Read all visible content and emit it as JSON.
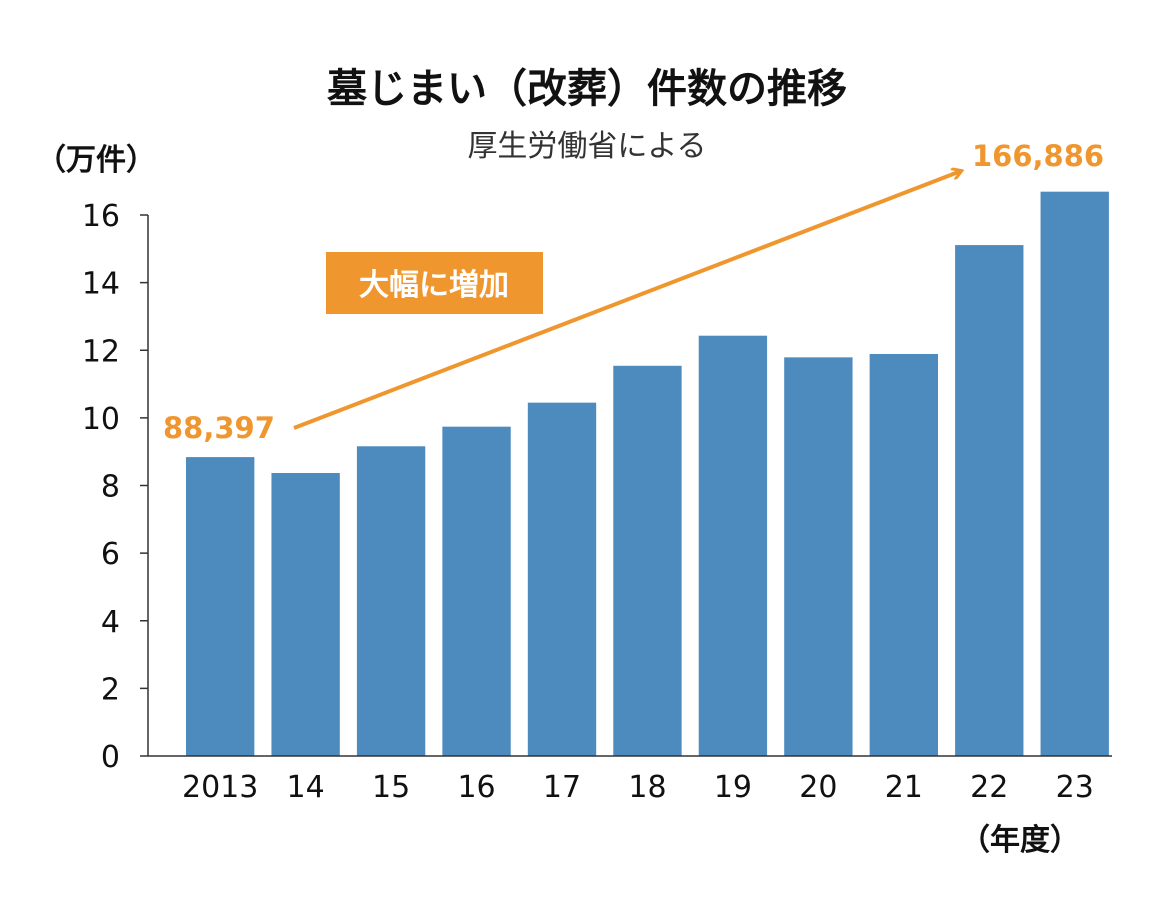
{
  "chart_data": {
    "type": "bar",
    "title": "墓じまい（改葬）件数の推移",
    "subtitle": "厚生労働省による",
    "ylabel": "（万件）",
    "xlabel": "（年度）",
    "categories": [
      "2013",
      "14",
      "15",
      "16",
      "17",
      "18",
      "19",
      "20",
      "21",
      "22",
      "23"
    ],
    "values": [
      8.84,
      8.37,
      9.16,
      9.74,
      10.45,
      11.54,
      12.43,
      11.79,
      11.89,
      15.11,
      16.69
    ],
    "ylim": [
      0,
      16
    ],
    "yticks": [
      0,
      2,
      4,
      6,
      8,
      10,
      12,
      14,
      16
    ],
    "grid": false,
    "legend": "none",
    "bar_color": "#4d8bbf",
    "annotations": {
      "start_label": "88,397",
      "end_label": "166,886",
      "badge": "大幅に増加",
      "accent_color": "#f0962e"
    }
  }
}
